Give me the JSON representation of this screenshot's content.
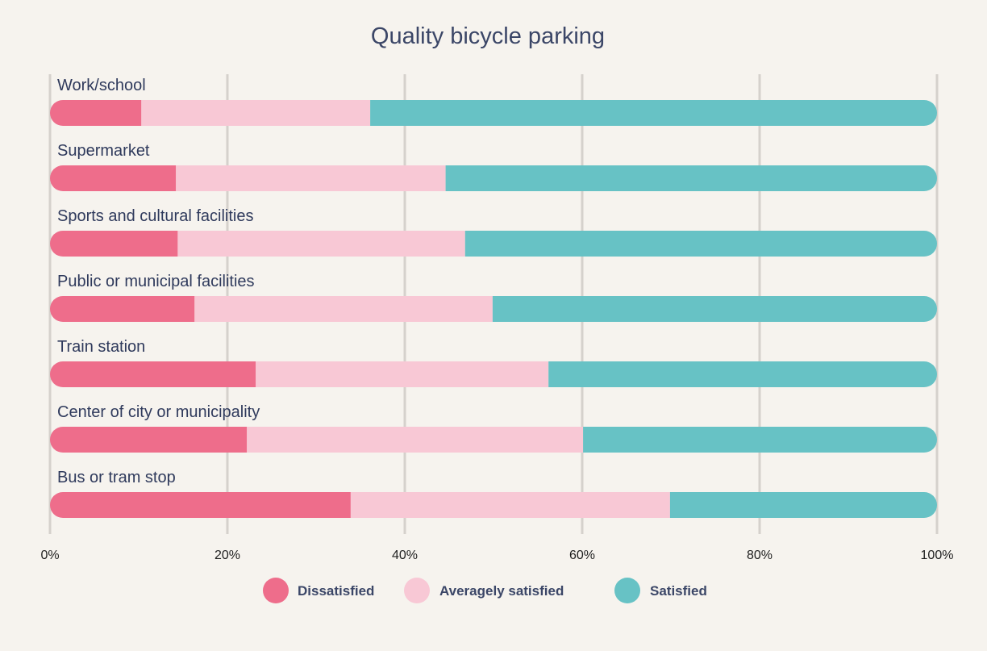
{
  "chart_data": {
    "type": "bar",
    "orientation": "horizontal",
    "stacked": true,
    "normalized": true,
    "title": "Quality bicycle parking",
    "categories": [
      "Work/school",
      "Supermarket",
      "Sports and cultural facilities",
      "Public or municipal facilities",
      "Train station",
      "Center of city or municipality",
      "Bus or tram stop"
    ],
    "series": [
      {
        "name": "Dissatisfied",
        "color": "#ee6d8b",
        "values": [
          10.3,
          14.2,
          14.4,
          16.3,
          23.2,
          22.2,
          33.9
        ]
      },
      {
        "name": "Averagely satisfied",
        "color": "#f8c8d5",
        "values": [
          25.8,
          30.4,
          32.4,
          33.6,
          33.0,
          37.9,
          36.0
        ]
      },
      {
        "name": "Satisfied",
        "color": "#67c2c5",
        "values": [
          63.9,
          55.4,
          53.2,
          50.1,
          43.8,
          39.9,
          30.1
        ]
      }
    ],
    "xlim": [
      0,
      100
    ],
    "x_ticks": [
      "0%",
      "20%",
      "40%",
      "60%",
      "80%",
      "100%"
    ],
    "grid": true,
    "legend_position": "bottom-center"
  }
}
